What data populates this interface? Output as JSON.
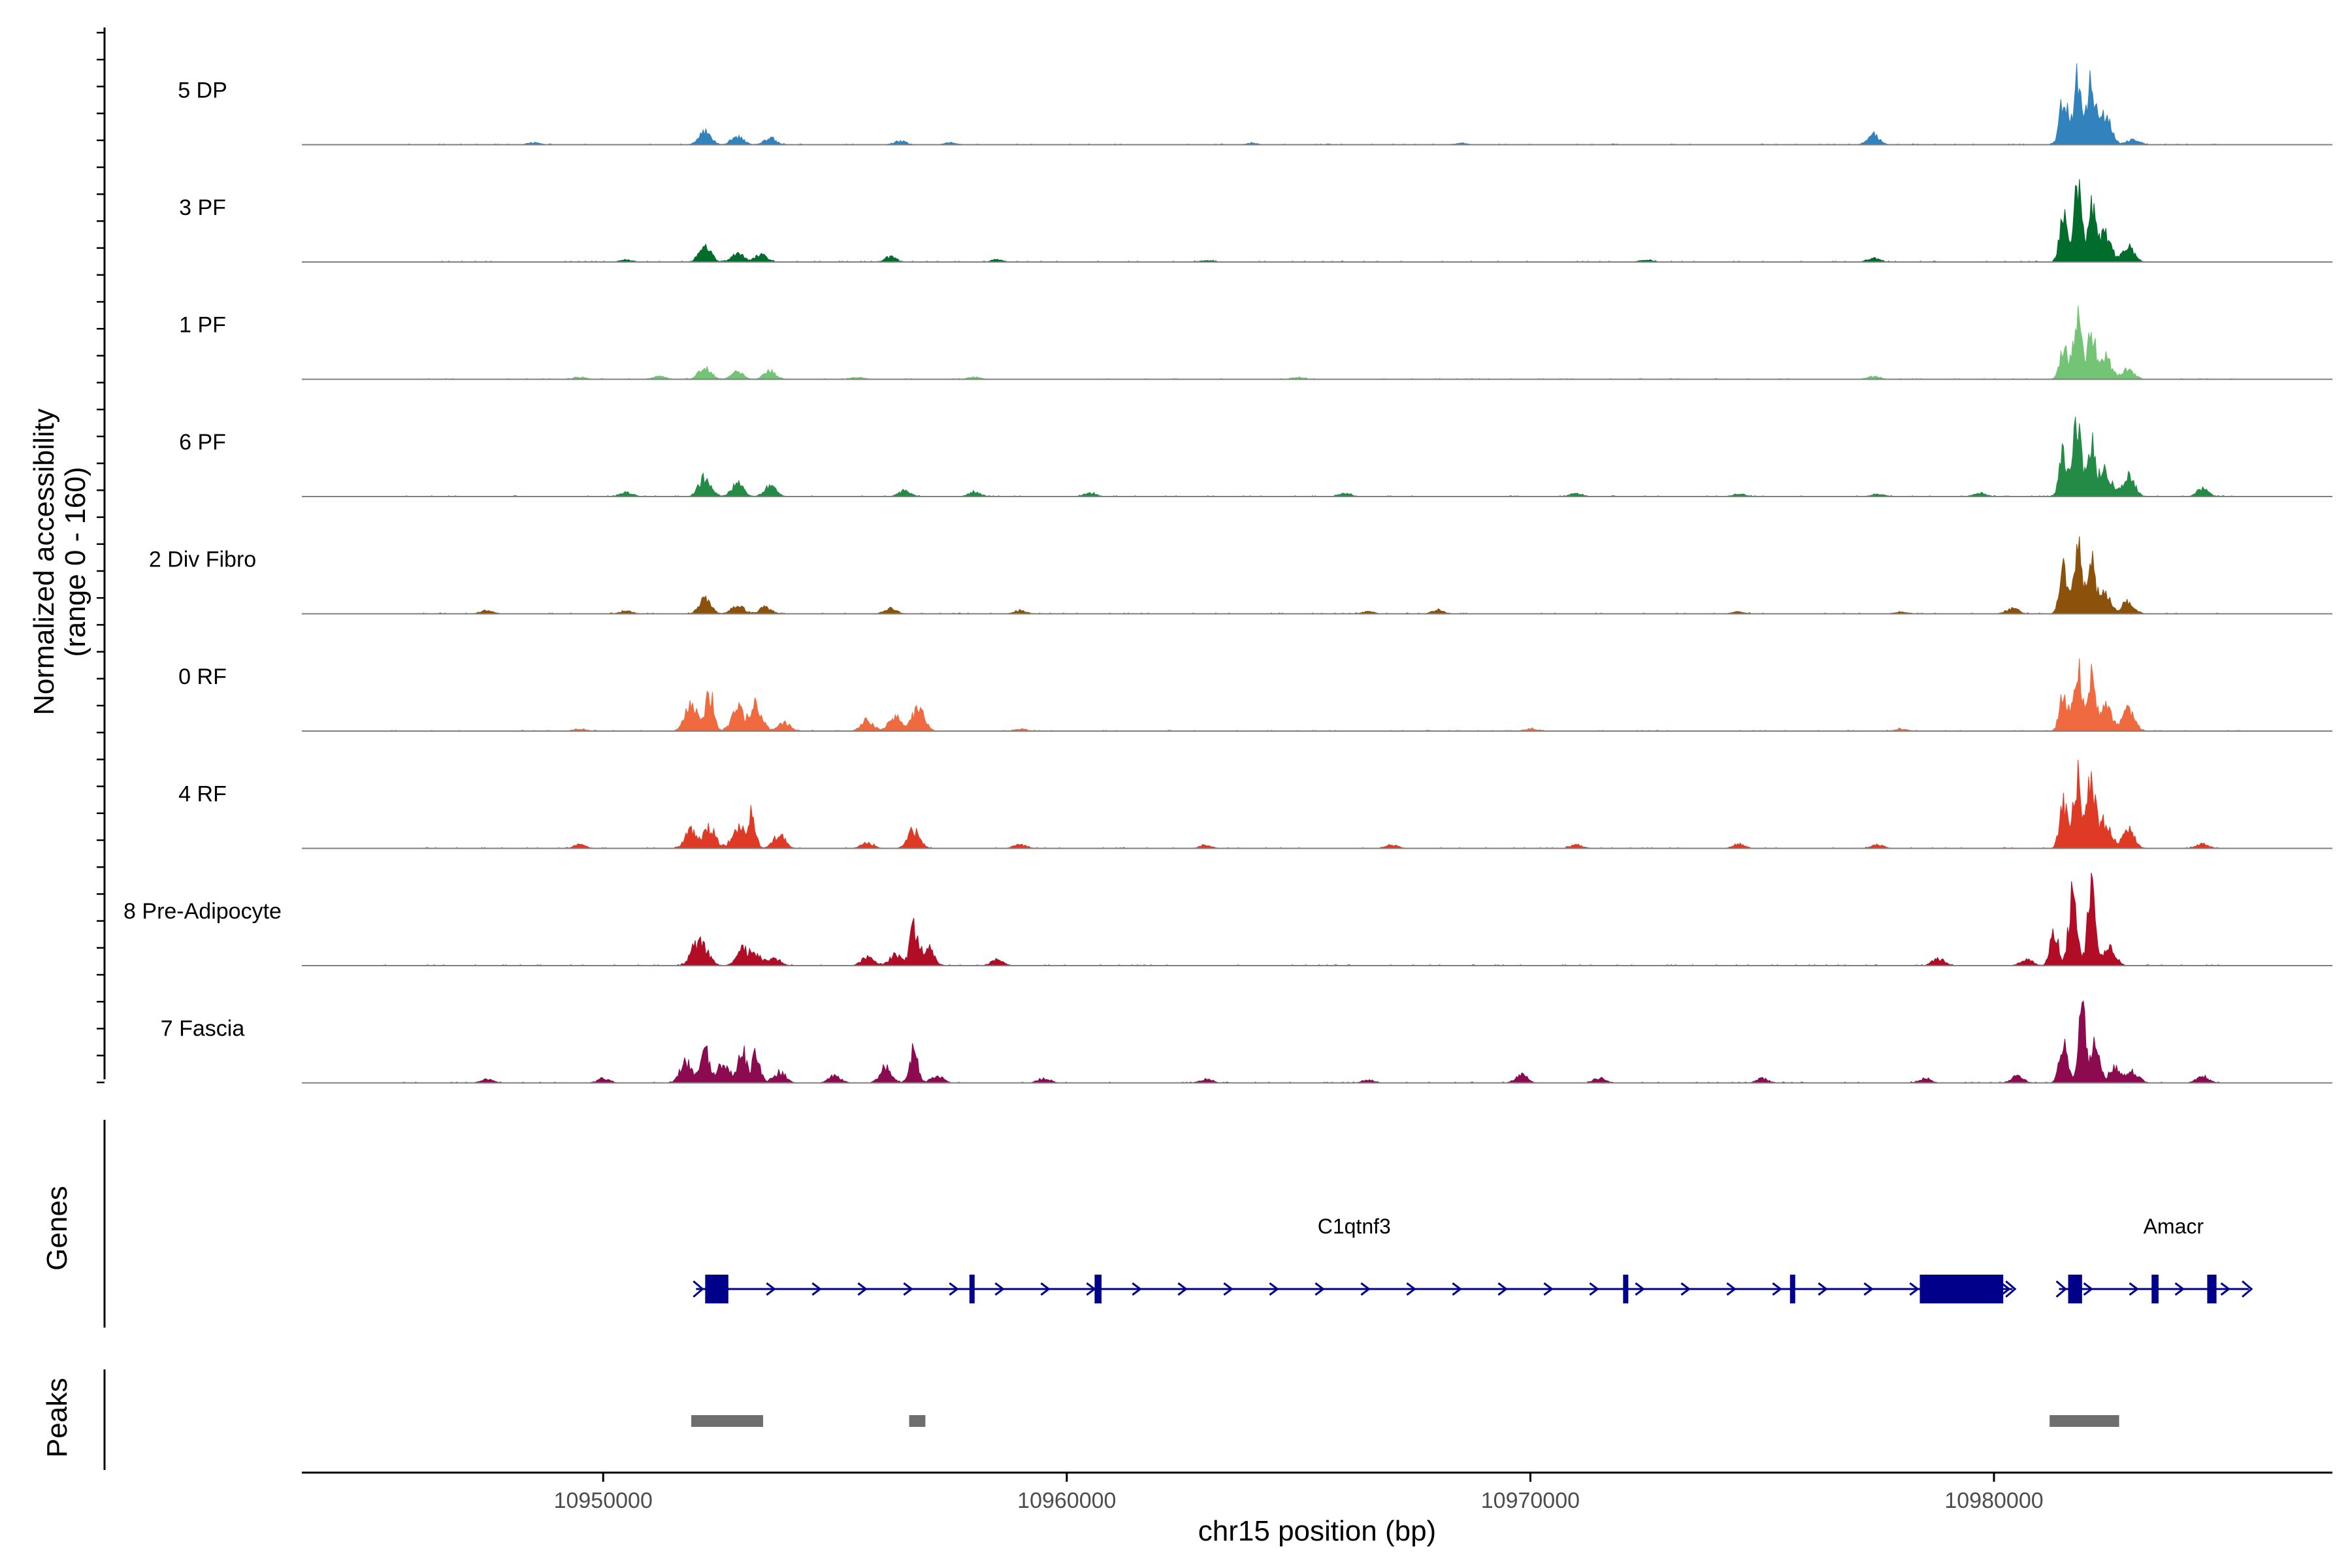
{
  "chart_data": {
    "type": "area",
    "chromosome": "chr15",
    "xlabel": "chr15 position (bp)",
    "ylabel_line1": "Normalized accessibility",
    "ylabel_line2": "(range 0 - 160)",
    "y_range": [
      0,
      160
    ],
    "x_range": [
      10943500,
      10987300
    ],
    "x_ticks": [
      10950000,
      10960000,
      10970000,
      10980000
    ],
    "x_tick_labels": [
      "10950000",
      "10960000",
      "10970000",
      "10980000"
    ],
    "genes_label": "Genes",
    "peaks_label": "Peaks",
    "series": [
      {
        "name": "5 DP",
        "color": "#3182bd",
        "peaks": [
          [
            10952200,
            18
          ],
          [
            10952900,
            12
          ],
          [
            10953600,
            9
          ],
          [
            10956400,
            5
          ],
          [
            10948500,
            3
          ],
          [
            10957500,
            3
          ],
          [
            10964000,
            2
          ],
          [
            10968500,
            2
          ],
          [
            10977400,
            14
          ],
          [
            10981500,
            70
          ],
          [
            10981800,
            95
          ],
          [
            10982100,
            88
          ],
          [
            10982400,
            40
          ],
          [
            10983000,
            8
          ]
        ]
      },
      {
        "name": "3 PF",
        "color": "#006d2c",
        "peaks": [
          [
            10952200,
            20
          ],
          [
            10952900,
            12
          ],
          [
            10953400,
            10
          ],
          [
            10956200,
            7
          ],
          [
            10950500,
            3
          ],
          [
            10958500,
            3
          ],
          [
            10963000,
            2
          ],
          [
            10972500,
            3
          ],
          [
            10977400,
            5
          ],
          [
            10981500,
            65
          ],
          [
            10981800,
            100
          ],
          [
            10982100,
            72
          ],
          [
            10982400,
            38
          ],
          [
            10982900,
            20
          ]
        ]
      },
      {
        "name": "1 PF",
        "color": "#74c476",
        "peaks": [
          [
            10951200,
            5
          ],
          [
            10952200,
            18
          ],
          [
            10952900,
            10
          ],
          [
            10953600,
            12
          ],
          [
            10949500,
            3
          ],
          [
            10955500,
            3
          ],
          [
            10958000,
            3
          ],
          [
            10965000,
            2
          ],
          [
            10977400,
            4
          ],
          [
            10981500,
            45
          ],
          [
            10981800,
            95
          ],
          [
            10982100,
            65
          ],
          [
            10982400,
            30
          ],
          [
            10982900,
            14
          ]
        ]
      },
      {
        "name": "6 PF",
        "color": "#238b45",
        "peaks": [
          [
            10952200,
            28
          ],
          [
            10952900,
            18
          ],
          [
            10953600,
            15
          ],
          [
            10950500,
            6
          ],
          [
            10956500,
            8
          ],
          [
            10958000,
            6
          ],
          [
            10960500,
            5
          ],
          [
            10966000,
            4
          ],
          [
            10971000,
            5
          ],
          [
            10974500,
            4
          ],
          [
            10977500,
            4
          ],
          [
            10979700,
            5
          ],
          [
            10981500,
            60
          ],
          [
            10981800,
            110
          ],
          [
            10982100,
            72
          ],
          [
            10982400,
            35
          ],
          [
            10982900,
            30
          ],
          [
            10984500,
            10
          ]
        ]
      },
      {
        "name": "2 Div Fibro",
        "color": "#8c510a",
        "peaks": [
          [
            10952200,
            20
          ],
          [
            10952900,
            12
          ],
          [
            10953500,
            9
          ],
          [
            10956200,
            8
          ],
          [
            10947500,
            5
          ],
          [
            10950500,
            4
          ],
          [
            10959000,
            4
          ],
          [
            10966500,
            3
          ],
          [
            10968000,
            5
          ],
          [
            10974500,
            3
          ],
          [
            10978000,
            3
          ],
          [
            10980400,
            8
          ],
          [
            10981500,
            60
          ],
          [
            10981800,
            105
          ],
          [
            10982100,
            68
          ],
          [
            10982400,
            30
          ],
          [
            10982900,
            18
          ]
        ]
      },
      {
        "name": "0 RF",
        "color": "#ef6b3f",
        "peaks": [
          [
            10951900,
            40
          ],
          [
            10952300,
            55
          ],
          [
            10952900,
            30
          ],
          [
            10953300,
            38
          ],
          [
            10953900,
            12
          ],
          [
            10955700,
            15
          ],
          [
            10956300,
            22
          ],
          [
            10956800,
            35
          ],
          [
            10949500,
            3
          ],
          [
            10959000,
            3
          ],
          [
            10970000,
            3
          ],
          [
            10978000,
            3
          ],
          [
            10981500,
            50
          ],
          [
            10981800,
            105
          ],
          [
            10982100,
            72
          ],
          [
            10982400,
            35
          ],
          [
            10982900,
            32
          ]
        ]
      },
      {
        "name": "4 RF",
        "color": "#de3a26",
        "peaks": [
          [
            10951900,
            25
          ],
          [
            10952300,
            28
          ],
          [
            10952900,
            30
          ],
          [
            10953200,
            45
          ],
          [
            10953800,
            18
          ],
          [
            10955700,
            8
          ],
          [
            10956700,
            25
          ],
          [
            10949500,
            5
          ],
          [
            10959000,
            5
          ],
          [
            10963000,
            4
          ],
          [
            10967000,
            5
          ],
          [
            10971000,
            5
          ],
          [
            10974500,
            6
          ],
          [
            10977500,
            5
          ],
          [
            10981500,
            60
          ],
          [
            10981800,
            100
          ],
          [
            10982100,
            95
          ],
          [
            10982400,
            38
          ],
          [
            10982900,
            25
          ],
          [
            10984500,
            6
          ]
        ]
      },
      {
        "name": "8 Pre-Adipocyte",
        "color": "#b10d26",
        "peaks": [
          [
            10952000,
            25
          ],
          [
            10952200,
            18
          ],
          [
            10953000,
            22
          ],
          [
            10953300,
            15
          ],
          [
            10953700,
            10
          ],
          [
            10955700,
            12
          ],
          [
            10956300,
            15
          ],
          [
            10956700,
            50
          ],
          [
            10957000,
            25
          ],
          [
            10958500,
            8
          ],
          [
            10978800,
            10
          ],
          [
            10980700,
            10
          ],
          [
            10981300,
            50
          ],
          [
            10981700,
            110
          ],
          [
            10982100,
            100
          ],
          [
            10982500,
            25
          ]
        ]
      },
      {
        "name": "7 Fascia",
        "color": "#8b0a50",
        "peaks": [
          [
            10951800,
            30
          ],
          [
            10952200,
            45
          ],
          [
            10952600,
            30
          ],
          [
            10953000,
            45
          ],
          [
            10953300,
            42
          ],
          [
            10953800,
            15
          ],
          [
            10955000,
            10
          ],
          [
            10956100,
            22
          ],
          [
            10956700,
            45
          ],
          [
            10957200,
            10
          ],
          [
            10947500,
            5
          ],
          [
            10950000,
            6
          ],
          [
            10959500,
            6
          ],
          [
            10963000,
            5
          ],
          [
            10966500,
            4
          ],
          [
            10969800,
            12
          ],
          [
            10971500,
            7
          ],
          [
            10975000,
            6
          ],
          [
            10978500,
            6
          ],
          [
            10980500,
            10
          ],
          [
            10981500,
            65
          ],
          [
            10981900,
            95
          ],
          [
            10982200,
            55
          ],
          [
            10982600,
            20
          ],
          [
            10983000,
            15
          ],
          [
            10984500,
            10
          ]
        ]
      }
    ],
    "genes": [
      {
        "name": "C1qtnf3",
        "strand": "+",
        "start": 10952200,
        "end": 10980200,
        "exons": [
          [
            10952200,
            10952700
          ],
          [
            10957900,
            10958000
          ],
          [
            10960600,
            10960750
          ],
          [
            10972000,
            10972100
          ],
          [
            10975600,
            10975700
          ],
          [
            10978400,
            10980200
          ]
        ]
      },
      {
        "name": "Amacr",
        "strand": "+",
        "start": 10981600,
        "end": 10985300,
        "exons": [
          [
            10981600,
            10981900
          ],
          [
            10983400,
            10983550
          ],
          [
            10984600,
            10984800
          ]
        ]
      }
    ],
    "peaks": [
      {
        "start": 10951900,
        "end": 10953450
      },
      {
        "start": 10956600,
        "end": 10956950
      },
      {
        "start": 10981200,
        "end": 10982700
      }
    ]
  }
}
